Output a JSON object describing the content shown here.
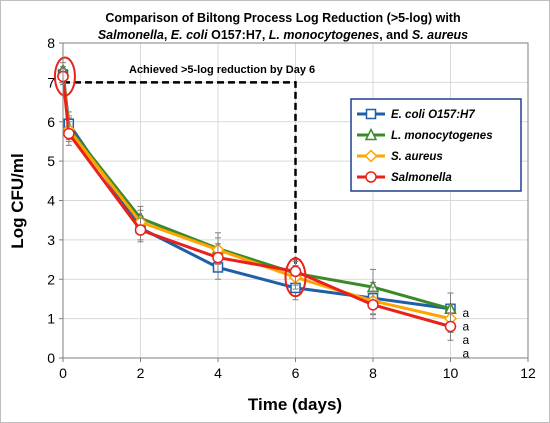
{
  "chart_data": {
    "type": "line",
    "title_line1": "Comparison of Biltong Process Log Reduction (>5-log) with",
    "title_line2_parts": [
      {
        "text": "Salmonella",
        "italic": true
      },
      {
        "text": ", ",
        "italic": false
      },
      {
        "text": "E. coli",
        "italic": true
      },
      {
        "text": " O157:H7, ",
        "italic": false
      },
      {
        "text": "L. monocytogenes",
        "italic": true
      },
      {
        "text": ", and ",
        "italic": false
      },
      {
        "text": "S. aureus",
        "italic": true
      }
    ],
    "xlabel": "Time (days)",
    "ylabel": "Log CFU/ml",
    "xlim": [
      0,
      12
    ],
    "ylim": [
      0,
      8
    ],
    "xticks": [
      0,
      2,
      4,
      6,
      8,
      10,
      12
    ],
    "yticks": [
      0,
      1,
      2,
      3,
      4,
      5,
      6,
      7,
      8
    ],
    "grid": true,
    "legend_position": "right",
    "series": [
      {
        "name": "E. coli O157:H7",
        "color": "#1f5fa8",
        "marker": "square",
        "x": [
          0,
          0.15,
          2,
          4,
          6,
          8,
          10
        ],
        "y": [
          7.2,
          5.95,
          3.3,
          2.3,
          1.78,
          1.52,
          1.25
        ],
        "err": [
          0.2,
          0.3,
          0.3,
          0.3,
          0.3,
          0.4,
          0.4
        ]
      },
      {
        "name": "L. monocytogenes",
        "color": "#3a8a2a",
        "marker": "triangle",
        "x": [
          0,
          0.15,
          2,
          4,
          6,
          8,
          10
        ],
        "y": [
          7.3,
          5.85,
          3.55,
          2.78,
          2.15,
          1.8,
          1.25
        ],
        "err": [
          0.2,
          0.3,
          0.3,
          0.4,
          0.3,
          0.45,
          0.4
        ]
      },
      {
        "name": "S. aureus",
        "color": "#ffa500",
        "marker": "diamond",
        "x": [
          0,
          0.15,
          2,
          4,
          6,
          8,
          10
        ],
        "y": [
          7.15,
          5.8,
          3.45,
          2.75,
          2.05,
          1.45,
          1.0
        ],
        "err": [
          0.2,
          0.3,
          0.3,
          0.3,
          0.3,
          0.35,
          0.35
        ]
      },
      {
        "name": "Salmonella",
        "color": "#e8221b",
        "marker": "circle",
        "x": [
          0,
          0.15,
          2,
          4,
          6,
          8,
          10
        ],
        "y": [
          7.15,
          5.7,
          3.25,
          2.55,
          2.2,
          1.35,
          0.8
        ],
        "err": [
          0.2,
          0.3,
          0.3,
          0.35,
          0.3,
          0.35,
          0.35
        ]
      }
    ],
    "annotations": [
      {
        "text": "Achieved >5-log reduction by Day 6"
      }
    ],
    "reference_path": {
      "x": [
        0,
        6,
        6
      ],
      "y": [
        7,
        7,
        2.05
      ]
    },
    "highlight_ellipses": [
      {
        "x": 0.05,
        "y": 7.15
      },
      {
        "x": 6,
        "y": 2.05
      }
    ],
    "significance_labels": [
      "a",
      "a",
      "a",
      "a"
    ]
  }
}
